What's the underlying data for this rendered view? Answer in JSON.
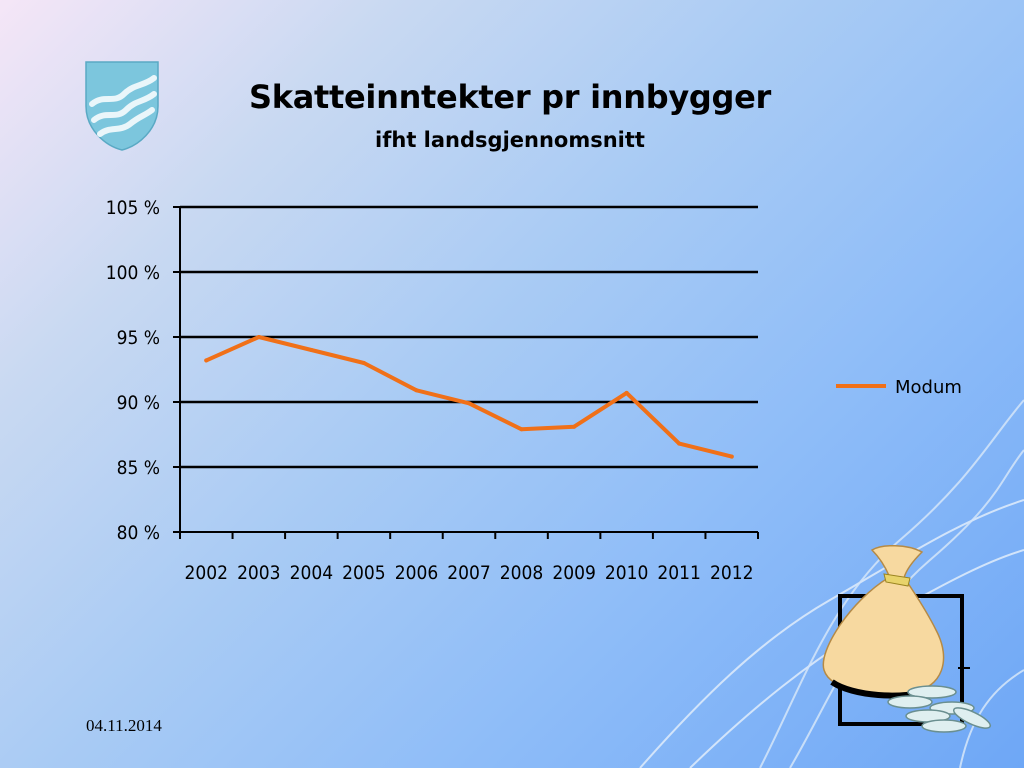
{
  "slide": {
    "title": "Skatteinntekter pr innbygger",
    "subtitle": "ifht landsgjennomsnitt",
    "date": "04.11.2014",
    "logo_icon": "municipal-crest-waves-icon",
    "illustration_icon": "money-bag-coins-icon"
  },
  "chart_data": {
    "type": "line",
    "title": "Skatteinntekter pr innbygger",
    "subtitle": "ifht landsgjennomsnitt",
    "categories": [
      "2002",
      "2003",
      "2004",
      "2005",
      "2006",
      "2007",
      "2008",
      "2009",
      "2010",
      "2011",
      "2012"
    ],
    "series": [
      {
        "name": "Modum",
        "color": "#f07018",
        "values": [
          93.2,
          95.0,
          94.0,
          93.0,
          90.9,
          89.9,
          87.9,
          88.1,
          90.7,
          86.8,
          85.8
        ]
      }
    ],
    "yticks": [
      80,
      85,
      90,
      95,
      100,
      105
    ],
    "ytick_labels": [
      "80 %",
      "85 %",
      "90 %",
      "95 %",
      "100 %",
      "105 %"
    ],
    "ylim": [
      80,
      105
    ],
    "grid": true,
    "legend_position": "right"
  }
}
